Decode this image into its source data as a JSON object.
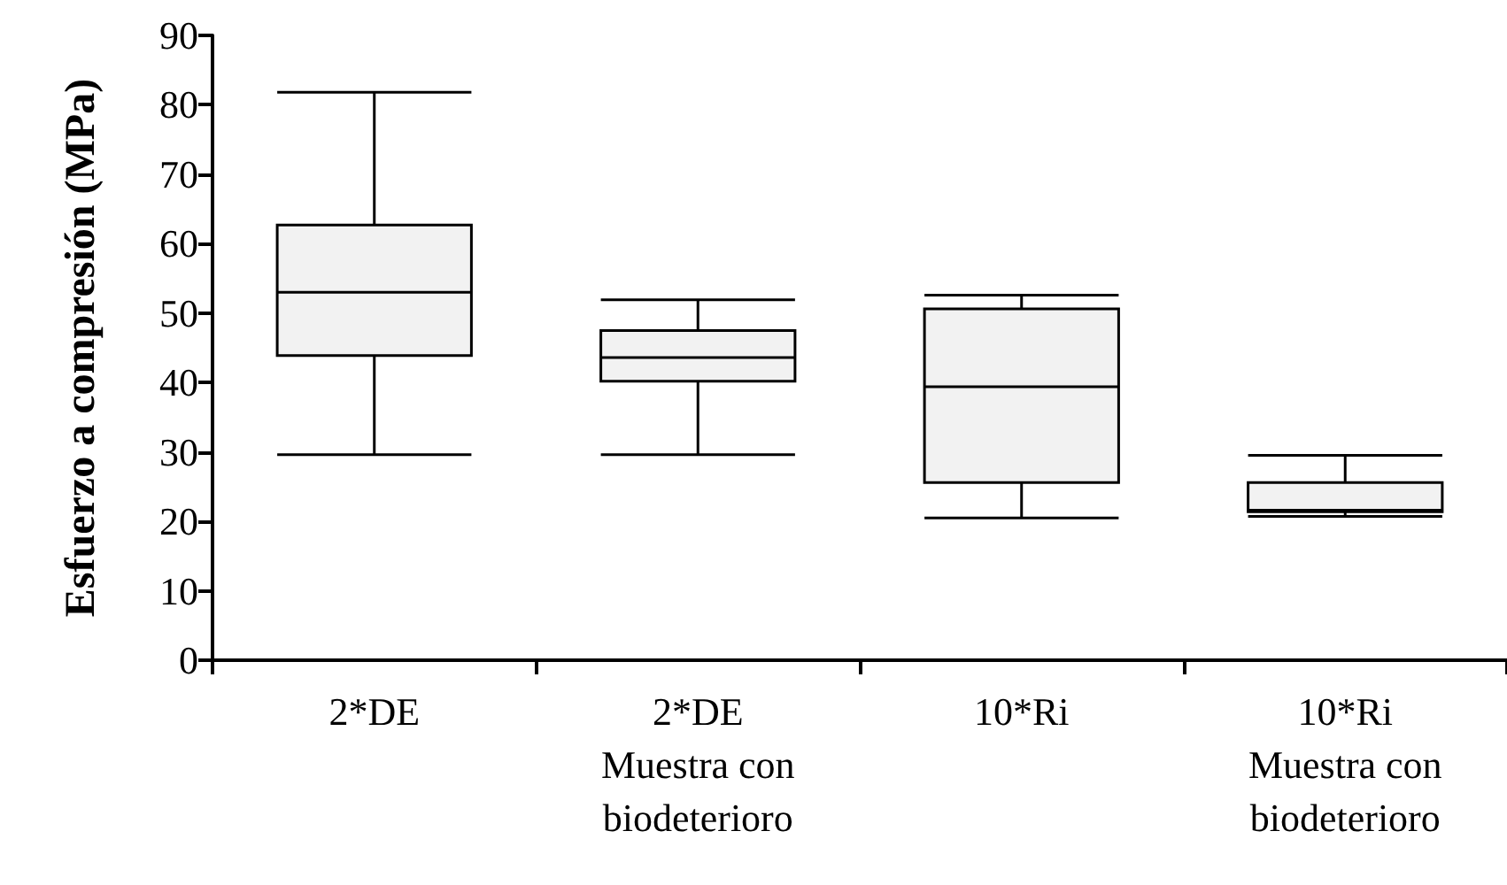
{
  "chart_data": {
    "type": "box",
    "ylabel": "Esfuerzo a compresión (MPa)",
    "categories": [
      "2*DE",
      "2*DE\nMuestra con\nbiodeterioro",
      "10*Ri",
      "10*Ri\nMuestra con\nbiodeterioro"
    ],
    "boxes": [
      {
        "low": 29.6,
        "q1": 43.9,
        "median": 53.0,
        "q3": 62.7,
        "high": 81.8
      },
      {
        "low": 29.6,
        "q1": 40.2,
        "median": 43.6,
        "q3": 47.5,
        "high": 51.9
      },
      {
        "low": 20.5,
        "q1": 25.6,
        "median": 39.4,
        "q3": 50.6,
        "high": 52.6
      },
      {
        "low": 20.7,
        "q1": 21.4,
        "median": 21.6,
        "q3": 25.6,
        "high": 29.5
      }
    ],
    "color": "#f2f2f2",
    "ylim": [
      0,
      90
    ],
    "yticks": [
      0,
      10,
      20,
      30,
      40,
      50,
      60,
      70,
      80,
      90
    ],
    "grid": false
  }
}
